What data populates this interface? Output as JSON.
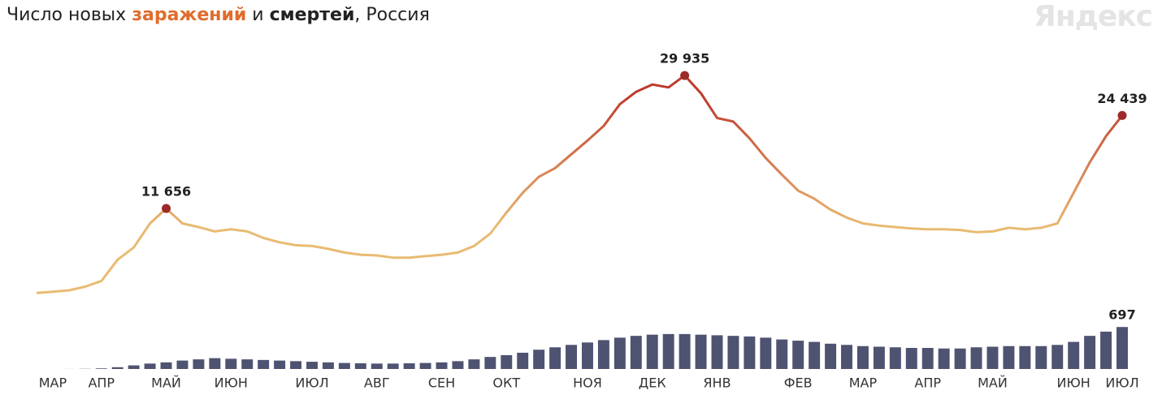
{
  "chart_data": {
    "type": "line_bar",
    "title": {
      "prefix": "Число новых",
      "middle": "и",
      "suffix": ", Россия"
    },
    "watermark": "Яндекс",
    "categories": [
      null,
      "МАР",
      null,
      null,
      "АПР",
      null,
      null,
      null,
      "МАЙ",
      null,
      null,
      null,
      "ИЮН",
      null,
      null,
      null,
      null,
      "ИЮЛ",
      null,
      null,
      null,
      "АВГ",
      null,
      null,
      null,
      "СЕН",
      null,
      null,
      null,
      "ОКТ",
      null,
      null,
      null,
      null,
      "НОЯ",
      null,
      null,
      null,
      "ДЕК",
      null,
      null,
      null,
      "ЯНВ",
      null,
      null,
      null,
      null,
      "ФЕВ",
      null,
      null,
      null,
      "МАР",
      null,
      null,
      null,
      "АПР",
      null,
      null,
      null,
      "МАЙ",
      null,
      null,
      null,
      null,
      "ИЮН",
      null,
      null,
      "ИЮЛ"
    ],
    "ylim": [
      0,
      32000
    ],
    "y2lim": [
      0,
      700
    ],
    "series": [
      {
        "name": "заражений",
        "color": "#e06c2c",
        "line_colors": [
          "#e8bb72",
          "#bf3a2c"
        ],
        "marker_color": "#9b2a2a",
        "values": [
          50,
          200,
          400,
          900,
          1700,
          4600,
          6300,
          9600,
          11656,
          9600,
          9100,
          8500,
          8800,
          8500,
          7600,
          7000,
          6600,
          6500,
          6100,
          5600,
          5300,
          5200,
          4900,
          4900,
          5100,
          5300,
          5600,
          6500,
          8200,
          11100,
          13800,
          16000,
          17200,
          19100,
          21000,
          23000,
          26000,
          27700,
          28700,
          28300,
          29935,
          27500,
          24100,
          23600,
          21300,
          18600,
          16300,
          14100,
          13000,
          11500,
          10400,
          9600,
          9300,
          9100,
          8900,
          8800,
          8800,
          8700,
          8400,
          8500,
          9000,
          8800,
          9000,
          9600,
          13800,
          18000,
          21600,
          24439
        ],
        "value_labels": [
          null,
          null,
          null,
          null,
          null,
          null,
          null,
          null,
          "11 656",
          null,
          null,
          null,
          null,
          null,
          null,
          null,
          null,
          null,
          null,
          null,
          null,
          null,
          null,
          null,
          null,
          null,
          null,
          null,
          null,
          null,
          null,
          null,
          null,
          null,
          null,
          null,
          null,
          null,
          null,
          null,
          "29 935",
          null,
          null,
          null,
          null,
          null,
          null,
          null,
          null,
          null,
          null,
          null,
          null,
          null,
          null,
          null,
          null,
          null,
          null,
          null,
          null,
          null,
          null,
          null,
          null,
          null,
          null,
          "24 439"
        ]
      },
      {
        "name": "смертей",
        "color": "#4f5372",
        "axis": "y2",
        "values": [
          0,
          0,
          1,
          3,
          10,
          30,
          60,
          90,
          110,
          140,
          160,
          180,
          170,
          160,
          150,
          140,
          130,
          120,
          110,
          100,
          95,
          90,
          90,
          95,
          100,
          110,
          130,
          160,
          200,
          230,
          270,
          320,
          360,
          400,
          440,
          480,
          520,
          550,
          570,
          580,
          580,
          570,
          560,
          550,
          540,
          520,
          490,
          470,
          450,
          420,
          400,
          380,
          370,
          360,
          350,
          350,
          340,
          340,
          360,
          370,
          380,
          380,
          380,
          400,
          450,
          550,
          620,
          697
        ],
        "value_labels": [
          null,
          null,
          null,
          null,
          null,
          null,
          null,
          null,
          null,
          null,
          null,
          null,
          null,
          null,
          null,
          null,
          null,
          null,
          null,
          null,
          null,
          null,
          null,
          null,
          null,
          null,
          null,
          null,
          null,
          null,
          null,
          null,
          null,
          null,
          null,
          null,
          null,
          null,
          null,
          null,
          null,
          null,
          null,
          null,
          null,
          null,
          null,
          null,
          null,
          null,
          null,
          null,
          null,
          null,
          null,
          null,
          null,
          null,
          null,
          null,
          null,
          null,
          null,
          null,
          null,
          null,
          null,
          "697"
        ]
      }
    ]
  }
}
